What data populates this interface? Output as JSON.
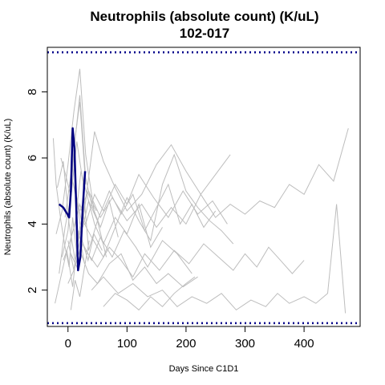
{
  "chart_data": {
    "type": "line",
    "title": "Neutrophils (absolute count) (K/uL)",
    "subtitle": "102-017",
    "xlabel": "Days Since C1D1",
    "ylabel": "Neutrophils (absolute count) (K/uL)",
    "xlim": [
      -35,
      495
    ],
    "ylim": [
      0.9,
      9.35
    ],
    "x_ticks": [
      0,
      100,
      200,
      300,
      400
    ],
    "y_ticks": [
      2,
      4,
      6,
      8
    ],
    "reference_lines": [
      {
        "y": 9.2,
        "style": "dotted",
        "color": "#00008b"
      },
      {
        "y": 1.0,
        "style": "dotted",
        "color": "#00008b"
      }
    ],
    "highlight_series": {
      "name": "102-017",
      "color": "#000080",
      "x": [
        -15,
        -8,
        -1,
        2,
        5,
        8,
        11,
        14,
        17,
        21,
        25,
        29
      ],
      "y": [
        4.6,
        4.5,
        4.3,
        4.2,
        5.0,
        6.9,
        6.3,
        4.5,
        2.6,
        3.0,
        4.5,
        5.6
      ]
    },
    "background_series": [
      {
        "x": [
          -25,
          -20,
          -12,
          -5,
          2,
          8,
          15
        ],
        "y": [
          6.6,
          5.2,
          4.1,
          3.3,
          2.7,
          4.2,
          3.1
        ]
      },
      {
        "x": [
          -20,
          -10,
          0,
          10,
          20,
          30,
          45
        ],
        "y": [
          3.7,
          4.4,
          5.8,
          7.4,
          8.7,
          6.1,
          4.3
        ]
      },
      {
        "x": [
          -15,
          -5,
          5,
          15,
          25,
          35,
          50,
          65
        ],
        "y": [
          2.5,
          3.9,
          4.8,
          6.5,
          5.3,
          3.2,
          4.1,
          3.0
        ]
      },
      {
        "x": [
          -18,
          -8,
          2,
          12,
          22,
          32,
          48
        ],
        "y": [
          5.1,
          5.9,
          4.0,
          2.9,
          3.6,
          5.0,
          4.4
        ]
      },
      {
        "x": [
          -22,
          -12,
          -2,
          8,
          18,
          28
        ],
        "y": [
          1.6,
          2.4,
          3.2,
          2.1,
          3.8,
          2.8
        ]
      },
      {
        "x": [
          -10,
          0,
          10,
          20,
          30,
          40,
          55,
          70,
          85
        ],
        "y": [
          3.0,
          3.8,
          6.2,
          7.9,
          5.4,
          4.6,
          3.9,
          4.7,
          3.6
        ]
      },
      {
        "x": [
          -5,
          5,
          15,
          25,
          35,
          50,
          70,
          90,
          110,
          130,
          150,
          170,
          190,
          210,
          230,
          250
        ],
        "y": [
          4.2,
          5.5,
          4.8,
          3.9,
          4.7,
          4.1,
          5.0,
          4.3,
          4.9,
          3.8,
          4.5,
          5.2,
          4.0,
          4.6,
          3.9,
          4.4
        ]
      },
      {
        "x": [
          -8,
          2,
          12,
          22,
          32,
          45,
          60,
          80,
          100,
          120,
          140,
          160
        ],
        "y": [
          2.9,
          3.4,
          4.0,
          5.6,
          4.9,
          4.0,
          3.4,
          4.2,
          3.7,
          4.6,
          3.3,
          3.9
        ]
      },
      {
        "x": [
          0,
          10,
          20,
          30,
          45,
          60,
          80,
          100,
          125,
          150,
          175,
          200,
          225,
          250,
          275
        ],
        "y": [
          3.5,
          2.6,
          3.9,
          4.7,
          6.8,
          5.9,
          5.1,
          4.4,
          4.9,
          5.8,
          6.4,
          5.6,
          4.9,
          5.5,
          6.1
        ]
      },
      {
        "x": [
          5,
          15,
          25,
          40,
          55,
          75,
          95,
          115,
          135,
          160,
          185,
          210
        ],
        "y": [
          3.1,
          2.7,
          3.4,
          2.9,
          3.6,
          3.0,
          3.8,
          3.3,
          2.7,
          3.5,
          3.1,
          2.5
        ]
      },
      {
        "x": [
          0,
          10,
          20,
          35,
          50,
          70,
          90,
          110,
          130,
          150,
          170,
          195,
          220
        ],
        "y": [
          2.2,
          2.6,
          3.2,
          2.5,
          2.2,
          2.8,
          3.1,
          2.3,
          2.7,
          2.2,
          2.5,
          2.1,
          2.4
        ]
      },
      {
        "x": [
          10,
          20,
          30,
          45,
          60,
          80,
          100,
          120,
          145,
          170,
          195,
          220,
          245,
          270
        ],
        "y": [
          3.9,
          4.6,
          4.0,
          4.9,
          4.4,
          5.2,
          4.6,
          5.5,
          4.8,
          4.2,
          5.0,
          4.3,
          4.7,
          4.0
        ]
      },
      {
        "x": [
          15,
          25,
          40,
          60,
          80,
          100,
          120,
          140,
          160,
          180,
          200,
          220,
          240,
          260,
          280
        ],
        "y": [
          3.3,
          4.1,
          3.6,
          3.0,
          3.9,
          4.8,
          4.1,
          3.5,
          5.2,
          6.1,
          5.0,
          4.5,
          4.1,
          3.8,
          3.4
        ]
      },
      {
        "x": [
          20,
          35,
          55,
          75,
          100,
          125,
          150,
          175,
          200,
          225,
          250,
          275,
          300,
          325,
          350,
          375,
          400,
          425,
          450,
          475
        ],
        "y": [
          4.4,
          5.0,
          4.2,
          4.8,
          4.1,
          4.6,
          3.9,
          4.5,
          4.0,
          4.9,
          4.2,
          4.6,
          4.3,
          4.7,
          4.5,
          5.2,
          4.9,
          5.8,
          5.3,
          6.9
        ]
      },
      {
        "x": [
          30,
          50,
          70,
          90,
          110,
          130,
          155,
          180,
          205,
          230,
          255,
          280,
          300,
          320,
          340,
          360,
          380,
          400
        ],
        "y": [
          3.2,
          2.7,
          3.3,
          2.9,
          2.4,
          3.1,
          2.6,
          3.2,
          2.8,
          3.4,
          3.0,
          2.6,
          3.1,
          2.7,
          3.3,
          2.9,
          2.5,
          2.9
        ]
      },
      {
        "x": [
          40,
          60,
          85,
          110,
          135,
          160,
          185,
          210,
          235,
          260,
          285,
          310,
          335,
          355,
          375,
          400,
          420,
          440,
          455,
          470
        ],
        "y": [
          2.0,
          2.4,
          1.9,
          2.2,
          1.8,
          2.0,
          1.5,
          1.8,
          1.6,
          1.9,
          1.4,
          1.7,
          1.5,
          1.9,
          1.6,
          1.8,
          1.6,
          1.9,
          4.6,
          1.3
        ]
      },
      {
        "x": [
          60,
          80,
          100,
          120,
          140,
          160,
          180,
          200,
          215
        ],
        "y": [
          1.5,
          1.9,
          1.7,
          1.4,
          1.8,
          1.5,
          1.9,
          2.2,
          2.4
        ]
      },
      {
        "x": [
          5,
          12,
          20,
          28,
          36
        ],
        "y": [
          1.4,
          2.3,
          1.8,
          2.7,
          3.5
        ]
      },
      {
        "x": [
          -12,
          -4,
          4,
          12,
          20,
          30
        ],
        "y": [
          6.0,
          5.5,
          4.9,
          6.6,
          7.7,
          5.2
        ]
      },
      {
        "x": [
          8,
          16,
          24,
          34,
          44,
          58
        ],
        "y": [
          5.3,
          4.6,
          3.5,
          2.9,
          3.7,
          3.2
        ]
      }
    ],
    "grid": false,
    "legend": "none"
  }
}
